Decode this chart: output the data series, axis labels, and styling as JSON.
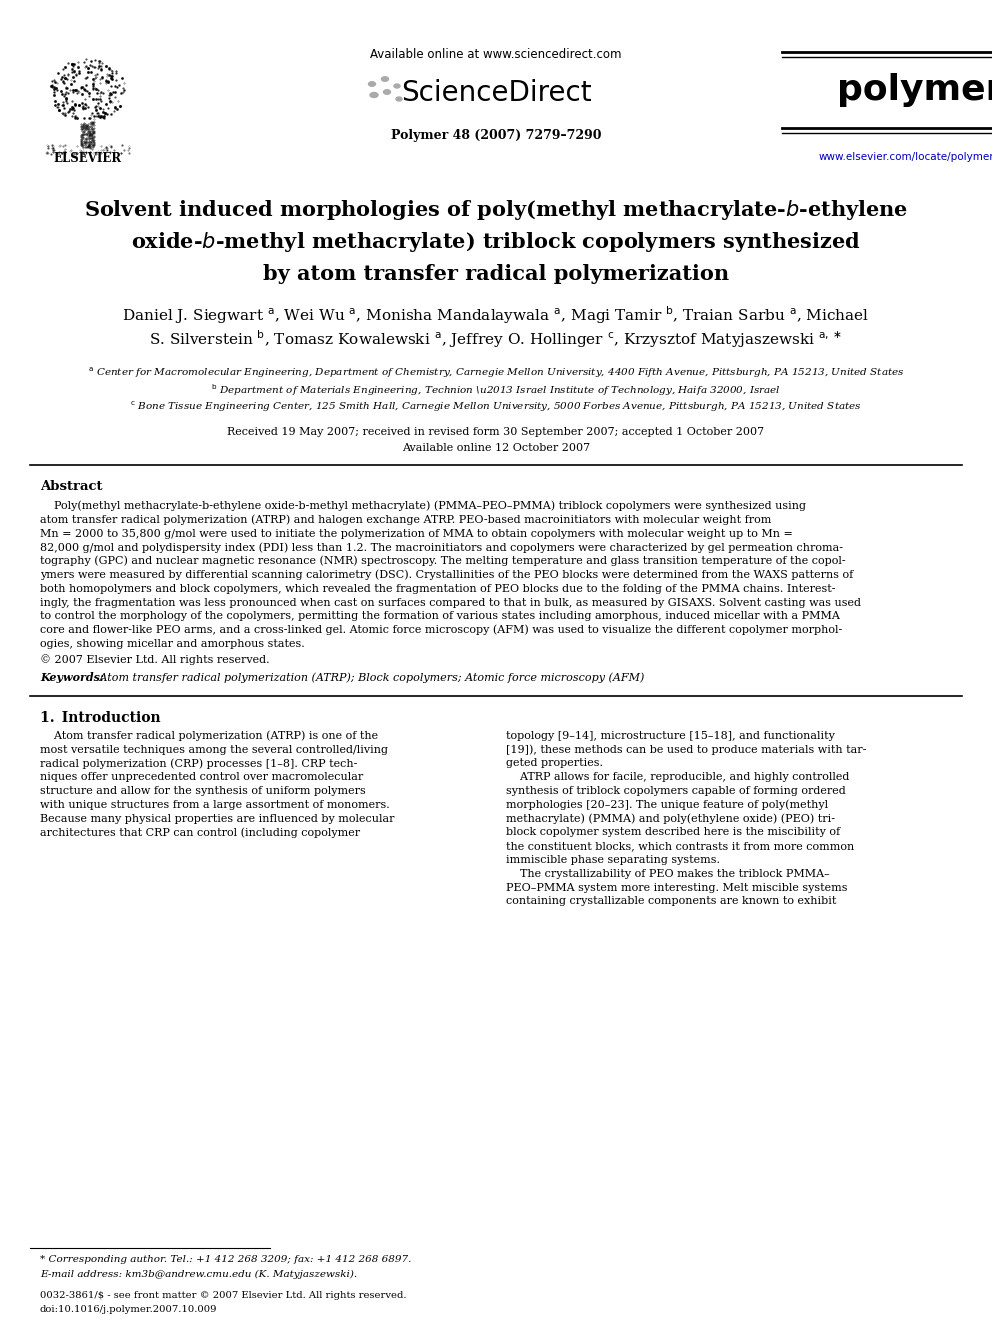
{
  "bg_color": "#ffffff",
  "sciencedirect_url": "Available online at www.sciencedirect.com",
  "journal_info": "Polymer 48 (2007) 7279–7290",
  "elsevier_url": "www.elsevier.com/locate/polymer",
  "received": "Received 19 May 2007; received in revised form 30 September 2007; accepted 1 October 2007",
  "available": "Available online 12 October 2007",
  "abstract_title": "Abstract",
  "copyright": "© 2007 Elsevier Ltd. All rights reserved.",
  "keywords_bold": "Keywords:",
  "keywords_rest": " Atom transfer radical polymerization (ATRP); Block copolymers; Atomic force microscopy (AFM)",
  "intro_title": "1. Introduction",
  "footnote": "* Corresponding author. Tel.: +1 412 268 3209; fax: +1 412 268 6897.",
  "footnote2": "E-mail address: km3b@andrew.cmu.edu (K. Matyjaszewski).",
  "footer": "0032-3861/$ - see front matter © 2007 Elsevier Ltd. All rights reserved.",
  "footer2": "doi:10.1016/j.polymer.2007.10.009",
  "abstract_lines": [
    "    Poly(methyl methacrylate-b-ethylene oxide-b-methyl methacrylate) (PMMA–PEO–PMMA) triblock copolymers were synthesized using",
    "atom transfer radical polymerization (ATRP) and halogen exchange ATRP. PEO-based macroinitiators with molecular weight from",
    "Mn = 2000 to 35,800 g/mol were used to initiate the polymerization of MMA to obtain copolymers with molecular weight up to Mn =",
    "82,000 g/mol and polydispersity index (PDI) less than 1.2. The macroinitiators and copolymers were characterized by gel permeation chroma-",
    "tography (GPC) and nuclear magnetic resonance (NMR) spectroscopy. The melting temperature and glass transition temperature of the copol-",
    "ymers were measured by differential scanning calorimetry (DSC). Crystallinities of the PEO blocks were determined from the WAXS patterns of",
    "both homopolymers and block copolymers, which revealed the fragmentation of PEO blocks due to the folding of the PMMA chains. Interest-",
    "ingly, the fragmentation was less pronounced when cast on surfaces compared to that in bulk, as measured by GISAXS. Solvent casting was used",
    "to control the morphology of the copolymers, permitting the formation of various states including amorphous, induced micellar with a PMMA",
    "core and flower-like PEO arms, and a cross-linked gel. Atomic force microscopy (AFM) was used to visualize the different copolymer morphol-",
    "ogies, showing micellar and amorphous states."
  ],
  "intro_col1_lines": [
    "    Atom transfer radical polymerization (ATRP) is one of the",
    "most versatile techniques among the several controlled/living",
    "radical polymerization (CRP) processes [1–8]. CRP tech-",
    "niques offer unprecedented control over macromolecular",
    "structure and allow for the synthesis of uniform polymers",
    "with unique structures from a large assortment of monomers.",
    "Because many physical properties are influenced by molecular",
    "architectures that CRP can control (including copolymer"
  ],
  "intro_col2_lines": [
    "topology [9–14], microstructure [15–18], and functionality",
    "[19]), these methods can be used to produce materials with tar-",
    "geted properties.",
    "    ATRP allows for facile, reproducible, and highly controlled",
    "synthesis of triblock copolymers capable of forming ordered",
    "morphologies [20–23]. The unique feature of poly(methyl",
    "methacrylate) (PMMA) and poly(ethylene oxide) (PEO) tri-",
    "block copolymer system described here is the miscibility of",
    "the constituent blocks, which contrasts it from more common",
    "immiscible phase separating systems.",
    "    The crystallizability of PEO makes the triblock PMMA–",
    "PEO–PMMA system more interesting. Melt miscible systems",
    "containing crystallizable components are known to exhibit"
  ]
}
